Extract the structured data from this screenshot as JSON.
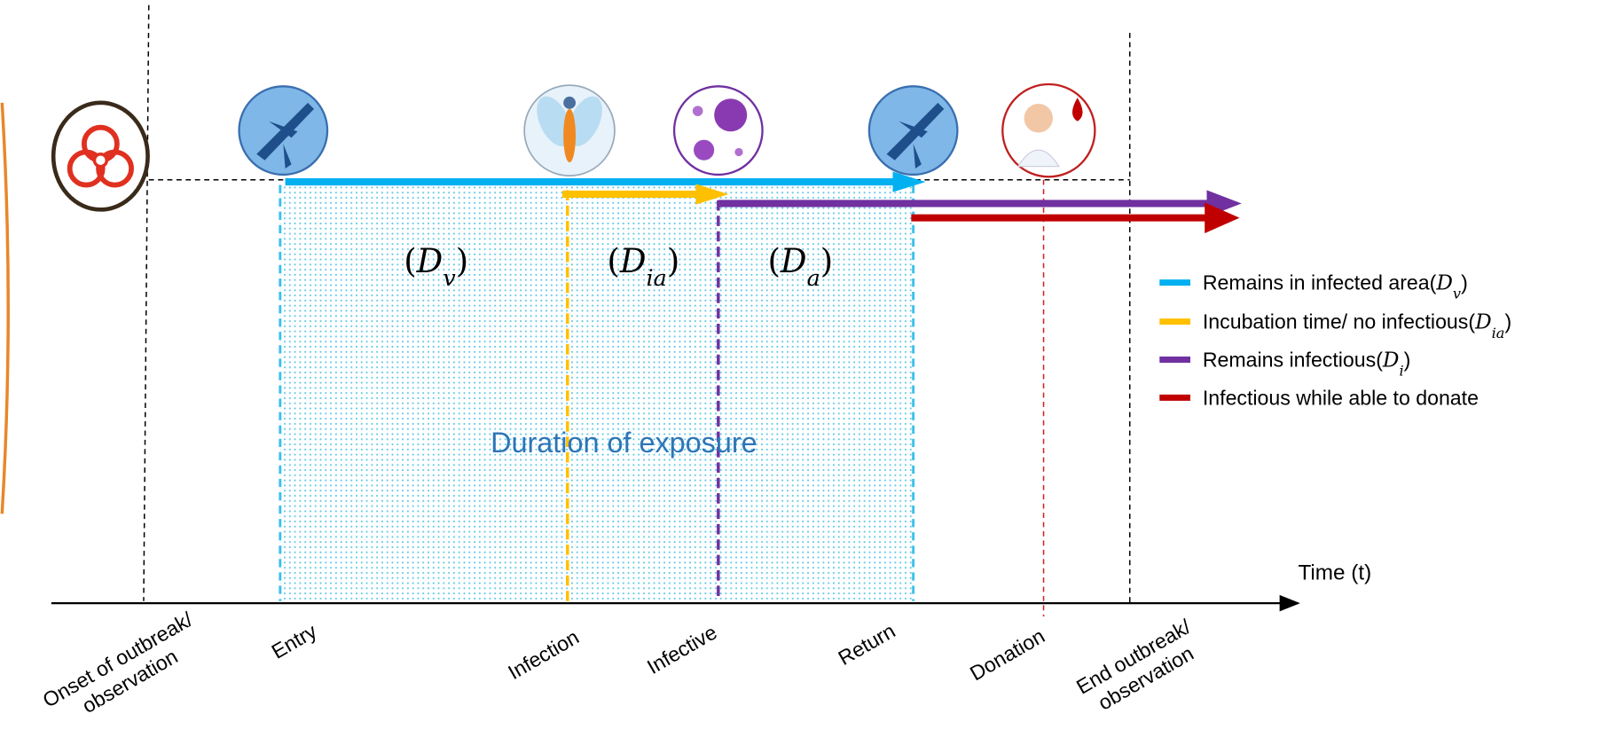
{
  "diagram": {
    "phases": [
      {
        "open": "(",
        "base": "D",
        "sub": "v",
        "close": ")"
      },
      {
        "open": "(",
        "base": "D",
        "sub": "ia",
        "close": ")"
      },
      {
        "open": "(",
        "base": "D",
        "sub": "a",
        "close": ")"
      }
    ],
    "exposure_label": "Duration of exposure",
    "axis_label": "Time (t)",
    "timeline_labels": [
      [
        "Onset of outbreak/",
        "observation"
      ],
      [
        "Entry"
      ],
      [
        "Infection"
      ],
      [
        "Infective"
      ],
      [
        "Return"
      ],
      [
        "Donation"
      ],
      [
        "End outbreak/",
        "observation"
      ]
    ],
    "legend": [
      {
        "text": "Remains in infected area",
        "color": "#00b0f0",
        "math": {
          "open": "(",
          "base": "D",
          "sub": "v",
          "close": ")"
        }
      },
      {
        "text": "Incubation time/ no infectious",
        "color": "#ffc000",
        "math": {
          "open": "(",
          "base": "D",
          "sub": "ia",
          "close": ")"
        }
      },
      {
        "text": "Remains infectious",
        "color": "#7030a0",
        "math": {
          "open": "(",
          "base": "D",
          "sub": "i",
          "close": ")"
        }
      },
      {
        "text": "Infectious while able to donate",
        "color": "#c00000"
      }
    ]
  }
}
